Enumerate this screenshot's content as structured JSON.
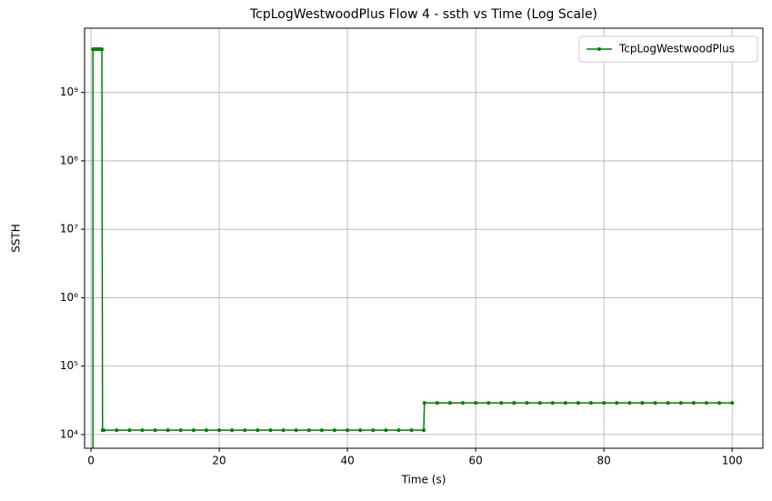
{
  "chart_data": {
    "type": "line",
    "title": "TcpLogWestwoodPlus Flow 4 - ssth vs Time (Log Scale)",
    "x_label": "Time (s)",
    "y_label": "SSTH",
    "x": [
      0.3,
      0.3,
      0.5,
      0.7,
      0.9,
      1.1,
      1.3,
      1.5,
      1.7,
      1.8,
      2,
      4,
      6,
      8,
      10,
      12,
      14,
      16,
      18,
      20,
      22,
      24,
      26,
      28,
      30,
      32,
      34,
      36,
      38,
      40,
      42,
      44,
      46,
      48,
      50,
      51.9,
      52,
      54,
      56,
      58,
      60,
      62,
      64,
      66,
      68,
      70,
      72,
      74,
      76,
      78,
      80,
      82,
      84,
      86,
      88,
      90,
      92,
      94,
      96,
      98,
      100
    ],
    "series": [
      {
        "name": "TcpLogWestwoodPlus",
        "color": "#008000",
        "values": [
          1000,
          4294967295,
          4294967295,
          4294967295,
          4294967295,
          4294967295,
          4294967295,
          4294967295,
          4294967295,
          11584,
          11584,
          11584,
          11584,
          11584,
          11584,
          11584,
          11584,
          11584,
          11584,
          11584,
          11584,
          11584,
          11584,
          11584,
          11584,
          11584,
          11584,
          11584,
          11584,
          11584,
          11584,
          11584,
          11584,
          11584,
          11584,
          11584,
          28960,
          28960,
          28960,
          28960,
          28960,
          28960,
          28960,
          28960,
          28960,
          28960,
          28960,
          28960,
          28960,
          28960,
          28960,
          28960,
          28960,
          28960,
          28960,
          28960,
          28960,
          28960,
          28960,
          28960,
          28960
        ]
      }
    ],
    "xlim": [
      -1,
      104.8
    ],
    "xticks": [
      0,
      20,
      40,
      60,
      80,
      100
    ],
    "ylim": [
      6300,
      8700000000
    ],
    "y_scale": "log",
    "yticks": [
      {
        "value": 10000,
        "label": "10⁴"
      },
      {
        "value": 100000,
        "label": "10⁵"
      },
      {
        "value": 1000000,
        "label": "10⁶"
      },
      {
        "value": 10000000,
        "label": "10⁷"
      },
      {
        "value": 100000000,
        "label": "10⁸"
      },
      {
        "value": 1000000000,
        "label": "10⁹"
      }
    ],
    "grid": true,
    "legend": "upper right"
  }
}
